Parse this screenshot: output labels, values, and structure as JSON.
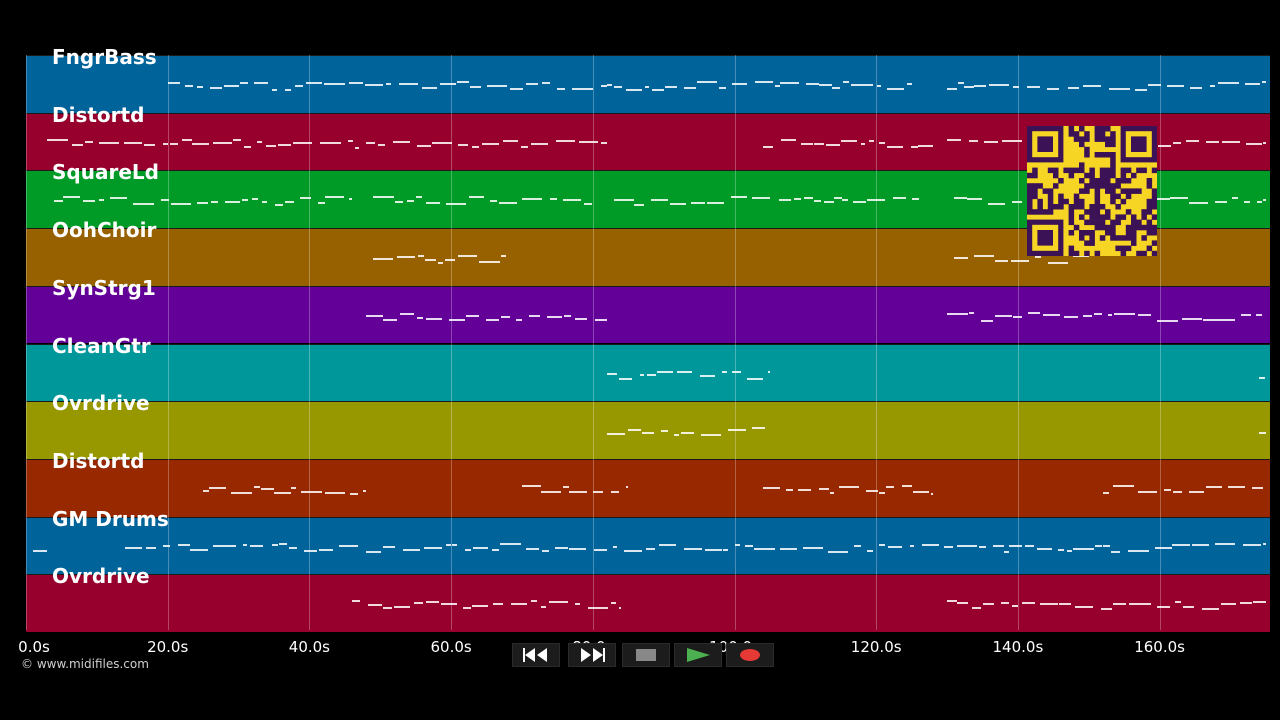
{
  "tracks": [
    {
      "name": "FngrBass",
      "color": "#00639a"
    },
    {
      "name": "Distortd",
      "color": "#97002c"
    },
    {
      "name": "SquareLd",
      "color": "#009a27"
    },
    {
      "name": "OohChoir",
      "color": "#976100"
    },
    {
      "name": "SynStrg1",
      "color": "#620097"
    },
    {
      "name": "CleanGtr",
      "color": "#00979a"
    },
    {
      "name": "Ovrdrive",
      "color": "#979700"
    },
    {
      "name": "Distortd",
      "color": "#972800"
    },
    {
      "name": "GM Drums",
      "color": "#00639a"
    },
    {
      "name": "Ovrdrive",
      "color": "#97002c"
    }
  ],
  "timeline": {
    "ticks": [
      "0.0s",
      "20.0s",
      "40.0s",
      "60.0s",
      "80.0s",
      "100.0s",
      "120.0s",
      "140.0s",
      "160.0s"
    ],
    "max_seconds": 175.5
  },
  "copyright": "© www.midifiles.com",
  "transport": {
    "rewind": "rewind-icon",
    "fast_forward": "fast-forward-icon",
    "stop": "stop-icon",
    "play": "play-icon",
    "record": "record-icon",
    "play_color": "#4caf50",
    "record_color": "#e53935"
  }
}
